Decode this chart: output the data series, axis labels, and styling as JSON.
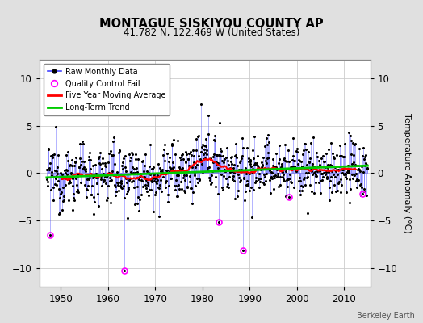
{
  "title": "MONTAGUE SISKIYOU COUNTY AP",
  "subtitle": "41.782 N, 122.469 W (United States)",
  "ylabel": "Temperature Anomaly (°C)",
  "credit": "Berkeley Earth",
  "start_year": 1947.5,
  "end_year": 2014.5,
  "xlim": [
    1945.5,
    2015.5
  ],
  "ylim": [
    -12,
    12
  ],
  "yticks": [
    -10,
    -5,
    0,
    5,
    10
  ],
  "outer_bg_color": "#e0e0e0",
  "plot_bg_color": "#ffffff",
  "grid_color": "#cccccc",
  "raw_line_color": "#4444ff",
  "raw_dot_color": "#000000",
  "qc_color": "#ff00ff",
  "moving_avg_color": "#ff0000",
  "trend_color": "#00cc00",
  "seed": 12345,
  "xticks": [
    1950,
    1960,
    1970,
    1980,
    1990,
    2000,
    2010
  ],
  "qc_years": [
    1947.75,
    1963.5,
    1983.5,
    1988.5,
    1998.25,
    2013.75
  ],
  "qc_vals": [
    -6.5,
    -10.3,
    -5.2,
    -8.2,
    -2.5,
    -2.2
  ]
}
